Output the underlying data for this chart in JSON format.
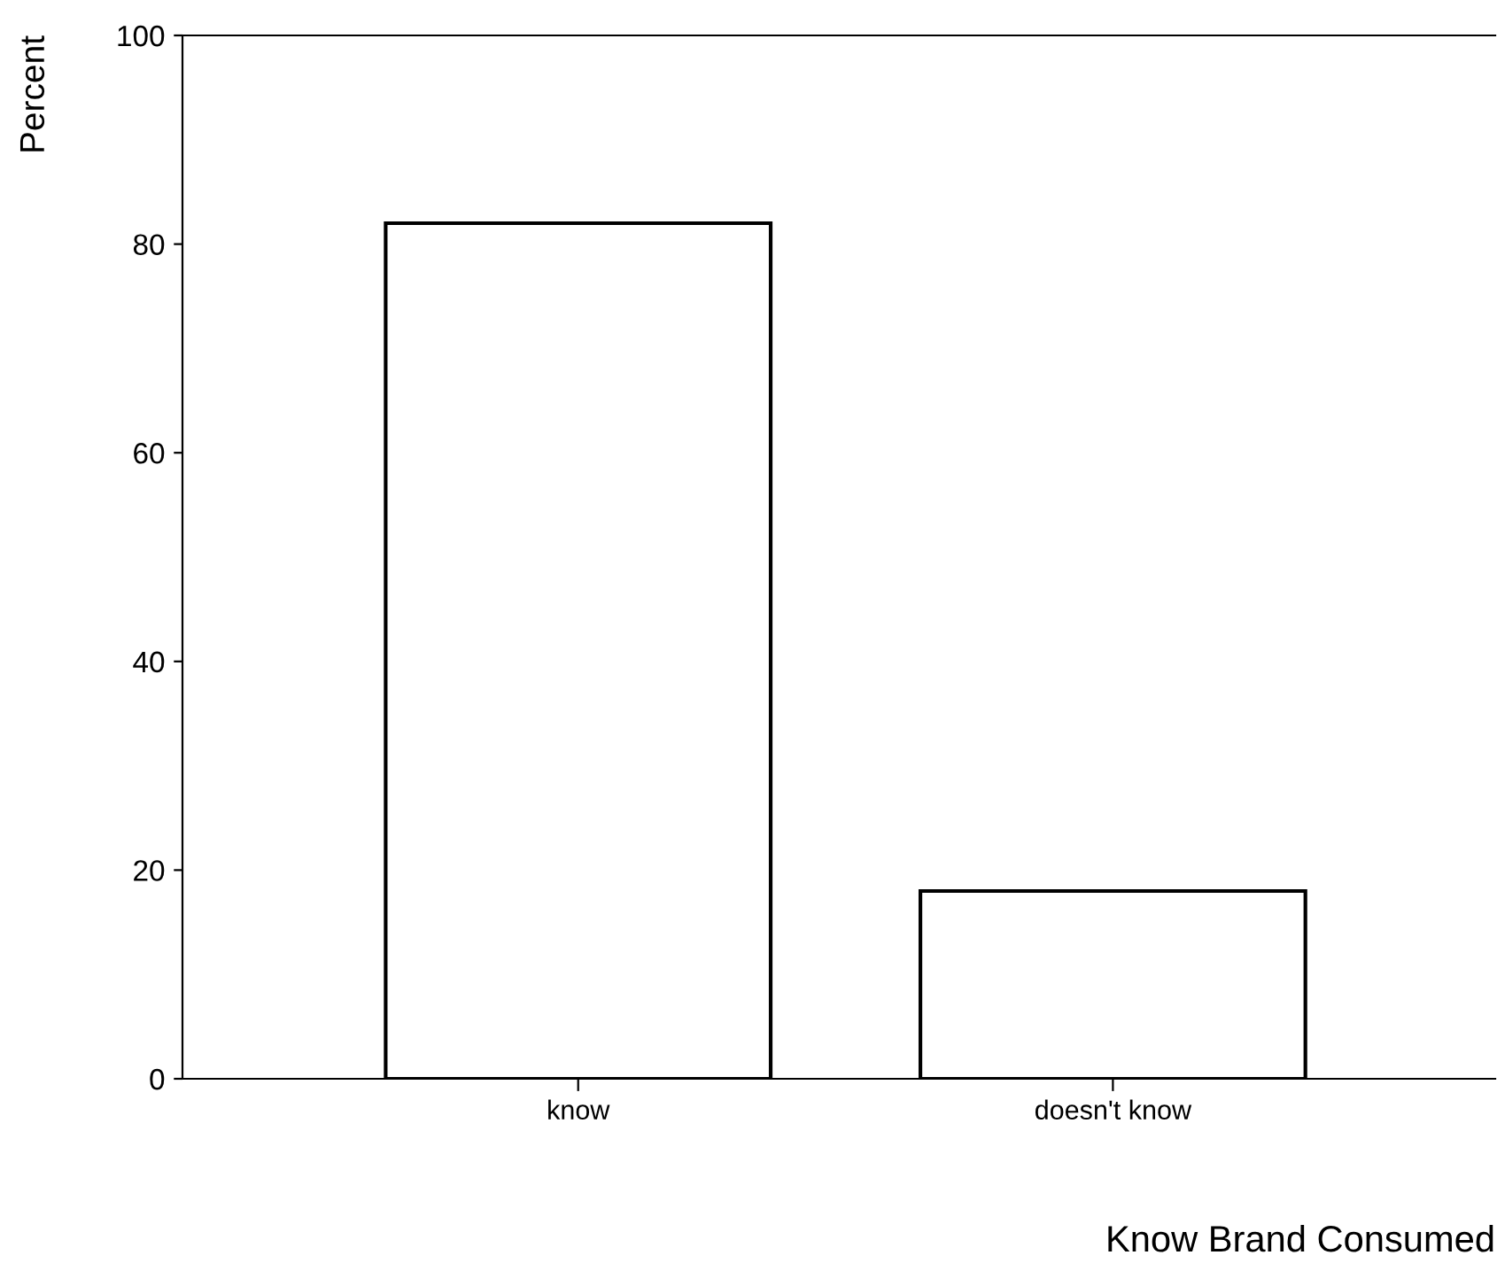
{
  "chart_data": {
    "type": "bar",
    "xlabel": "Know Brand Consumed",
    "ylabel": "Percent",
    "categories": [
      "know",
      "doesn't know"
    ],
    "values": [
      82,
      18
    ],
    "color": "#ffffff",
    "ylim": [
      0,
      100
    ],
    "yticks": [
      0,
      20,
      40,
      60,
      80,
      100
    ],
    "grid": false,
    "legend": false
  }
}
